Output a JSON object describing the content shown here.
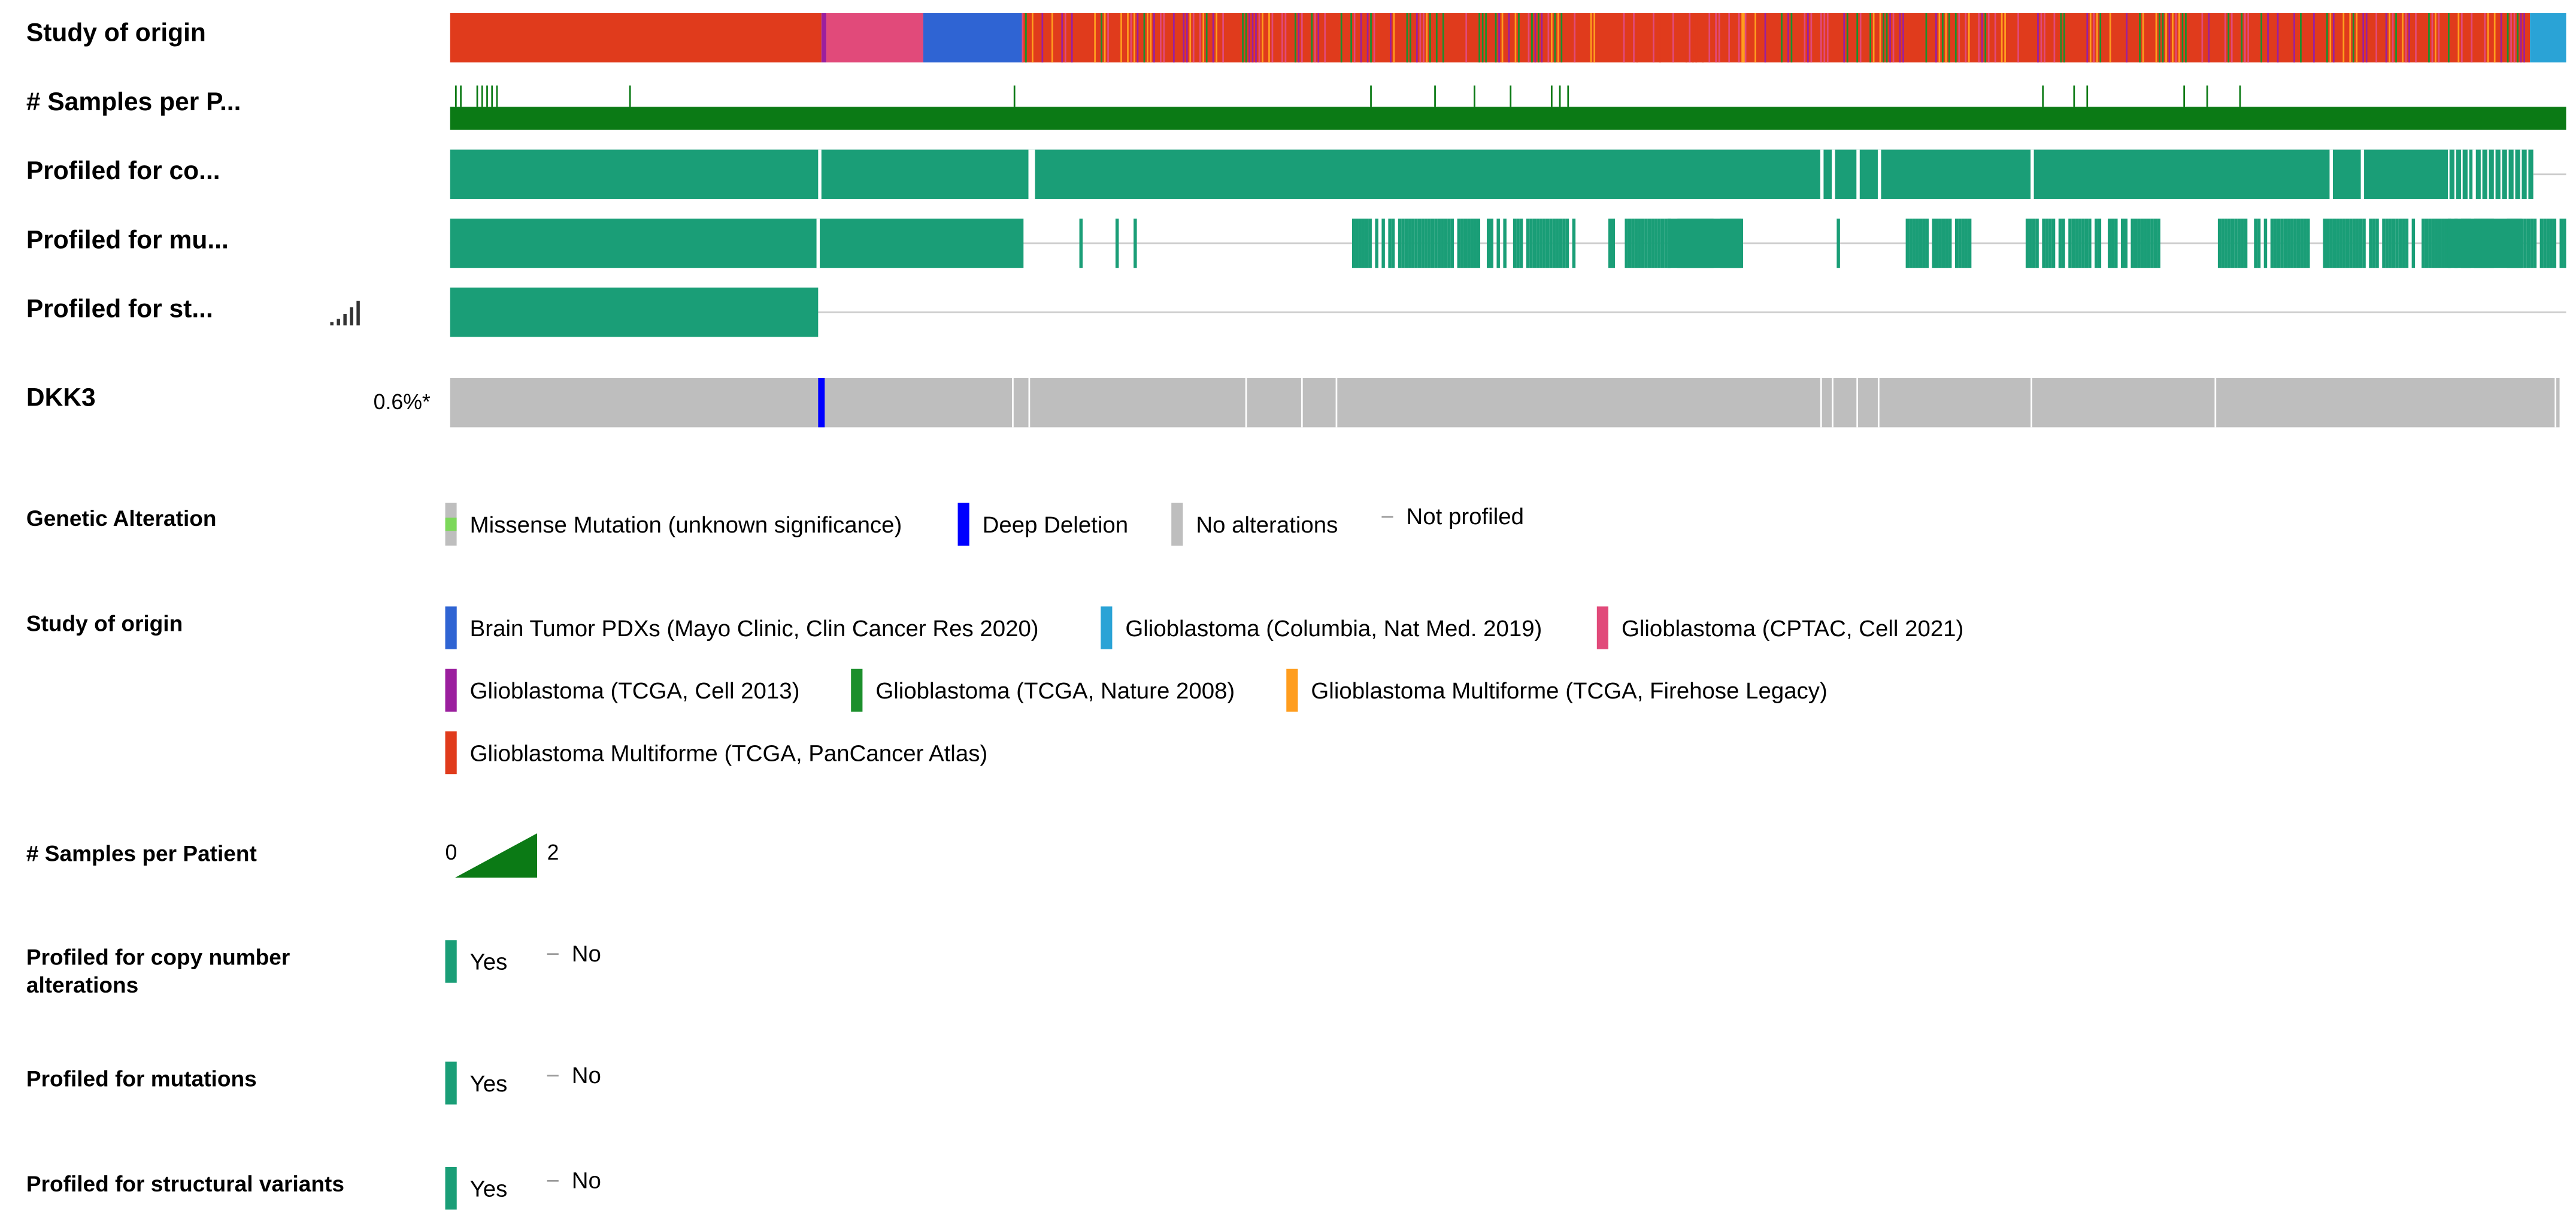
{
  "tracks": {
    "study_of_origin": "Study of origin",
    "samples_per_patient": "# Samples per P...",
    "profiled_cna": "Profiled for co...",
    "profiled_mut": "Profiled for mu...",
    "profiled_sv": "Profiled for st..."
  },
  "gene": {
    "name": "DKK3",
    "altered_percent": "0.6%*"
  },
  "colors": {
    "profiled": "#1a9e77",
    "not_profiled_line": "#cccccc",
    "no_alteration": "#bebebe",
    "deep_deletion": "#0000ff",
    "missense_unknown": "#7cd85a",
    "samples_bar": "#0b7a15",
    "study_pdx": "#2f64d3",
    "study_columbia": "#2aa3d6",
    "study_cptac": "#e14a7a",
    "study_tcga_cell2013": "#9b1f9e",
    "study_tcga_nature2008": "#1c8f2c",
    "study_firehose": "#ff9d1e",
    "study_pancancer": "#e03b1c"
  },
  "legend": {
    "genetic_alteration": {
      "title": "Genetic Alteration",
      "items": [
        "Missense Mutation (unknown significance)",
        "Deep Deletion",
        "No alterations",
        "Not profiled"
      ]
    },
    "study_of_origin": {
      "title": "Study of origin",
      "items": [
        "Brain Tumor PDXs (Mayo Clinic, Clin Cancer Res 2020)",
        "Glioblastoma (Columbia, Nat Med. 2019)",
        "Glioblastoma (CPTAC, Cell 2021)",
        "Glioblastoma (TCGA, Cell 2013)",
        "Glioblastoma (TCGA, Nature 2008)",
        "Glioblastoma Multiforme (TCGA, Firehose Legacy)",
        "Glioblastoma Multiforme (TCGA, PanCancer Atlas)"
      ]
    },
    "samples_per_patient": {
      "title": "# Samples per Patient",
      "min": "0",
      "max": "2"
    },
    "profiled_cna": {
      "title": "Profiled for copy number alterations",
      "yes": "Yes",
      "no": "No"
    },
    "profiled_mut": {
      "title": "Profiled for mutations",
      "yes": "Yes",
      "no": "No"
    },
    "profiled_sv": {
      "title": "Profiled for structural variants",
      "yes": "Yes",
      "no": "No"
    }
  }
}
